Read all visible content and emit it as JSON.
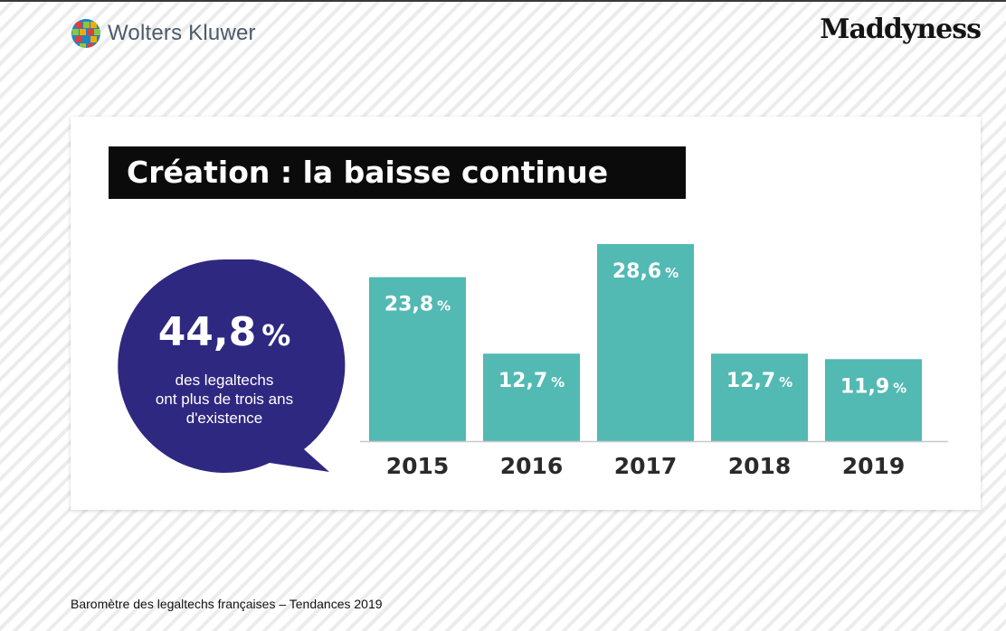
{
  "brand": {
    "left_logo_text": "Wolters Kluwer",
    "right_logo_text": "Maddyness",
    "accent": "#52b9b3",
    "bubble_color": "#2f2881"
  },
  "highlight": {
    "value": "44,8",
    "unit": "%",
    "text": "des legaltechs\nont plus de trois ans\nd'existence"
  },
  "chart_data": {
    "type": "bar",
    "title": "Création : la baisse continue",
    "categories": [
      "2015",
      "2016",
      "2017",
      "2018",
      "2019"
    ],
    "values": [
      23.8,
      12.7,
      28.6,
      12.7,
      11.9
    ],
    "value_labels": [
      "23,8",
      "12,7",
      "28,6",
      "12,7",
      "11,9"
    ],
    "unit": "%",
    "ylim": [
      0,
      28.6
    ],
    "grid": false,
    "legend": "none",
    "bar_color": "#52b9b3"
  },
  "footer": {
    "source": "Baromètre des legaltechs françaises – Tendances 2019"
  }
}
